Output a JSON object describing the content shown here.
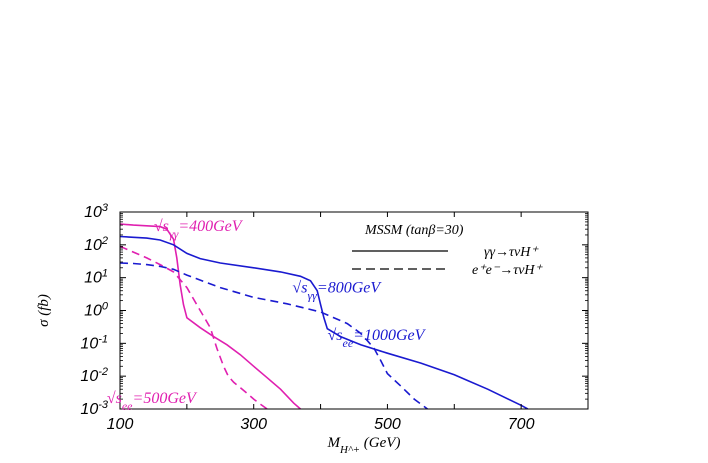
{
  "chart_data": {
    "type": "line",
    "title": "",
    "xlabel": "M_{H^+} (GeV)",
    "ylabel": "σ (fb)",
    "x_scale": "linear",
    "y_scale": "log",
    "xlim": [
      100,
      800
    ],
    "ylim": [
      0.001,
      1000
    ],
    "x_ticks": [
      100,
      300,
      500,
      700
    ],
    "y_ticks": [
      {
        "value": 0.001,
        "label": "10^-3"
      },
      {
        "value": 0.01,
        "label": "10^-2"
      },
      {
        "value": 0.1,
        "label": "10^-1"
      },
      {
        "value": 1,
        "label": "10^0"
      },
      {
        "value": 10,
        "label": "10^1"
      },
      {
        "value": 100,
        "label": "10^2"
      },
      {
        "value": 1000,
        "label": "10^3"
      }
    ],
    "grid": false,
    "legend_position": "top-right",
    "legend_title": "MSSM (tanβ=30)",
    "legend": [
      {
        "style": "solid",
        "label": "γγ→τνH⁺"
      },
      {
        "style": "dashed",
        "label": "e⁺e⁻→τνH⁺"
      }
    ],
    "annotations": [
      {
        "text": "√s_γγ=400GeV",
        "color": "#e020b0",
        "x": 200,
        "y": 380
      },
      {
        "text": "√s_γγ=800GeV",
        "color": "#1a1ad0",
        "x": 500,
        "y": 5
      },
      {
        "text": "√s_ee=1000GeV",
        "color": "#1a1ad0",
        "x": 530,
        "y": 0.18
      },
      {
        "text": "√s_ee=500GeV",
        "color": "#e020b0",
        "x": 200,
        "y": 0.0022
      }
    ],
    "series": [
      {
        "color": "#e020b0",
        "style": "solid",
        "x": [
          100,
          120,
          140,
          160,
          170,
          180,
          185,
          190,
          195,
          200,
          220,
          240,
          260,
          280,
          300,
          320,
          340,
          360,
          370
        ],
        "y": [
          430,
          400,
          380,
          360,
          300,
          150,
          40,
          6,
          1.5,
          0.6,
          0.3,
          0.16,
          0.09,
          0.045,
          0.02,
          0.009,
          0.004,
          0.0015,
          0.001
        ]
      },
      {
        "color": "#e020b0",
        "style": "dashed",
        "x": [
          100,
          120,
          140,
          160,
          180,
          200,
          220,
          235,
          245,
          255,
          262,
          270,
          280,
          290,
          300,
          310,
          320
        ],
        "y": [
          90,
          60,
          40,
          25,
          15,
          5,
          1,
          0.3,
          0.07,
          0.02,
          0.01,
          0.0065,
          0.0045,
          0.003,
          0.002,
          0.0014,
          0.001
        ]
      },
      {
        "color": "#1a1ad0",
        "style": "solid",
        "x": [
          100,
          120,
          140,
          160,
          180,
          200,
          220,
          250,
          300,
          340,
          370,
          385,
          395,
          400,
          405,
          410,
          430,
          460,
          500,
          550,
          600,
          650,
          700,
          710
        ],
        "y": [
          180,
          170,
          160,
          140,
          100,
          55,
          38,
          28,
          20,
          15,
          11,
          8,
          4,
          1.5,
          0.6,
          0.28,
          0.16,
          0.09,
          0.05,
          0.025,
          0.011,
          0.004,
          0.0013,
          0.001
        ]
      },
      {
        "color": "#1a1ad0",
        "style": "dashed",
        "x": [
          100,
          120,
          140,
          160,
          180,
          200,
          250,
          300,
          350,
          400,
          440,
          460,
          470,
          480,
          490,
          500,
          520,
          540,
          560
        ],
        "y": [
          28,
          27,
          25,
          22,
          18,
          12,
          5,
          2.5,
          1.6,
          0.9,
          0.4,
          0.2,
          0.12,
          0.07,
          0.03,
          0.012,
          0.005,
          0.002,
          0.001
        ]
      }
    ]
  }
}
